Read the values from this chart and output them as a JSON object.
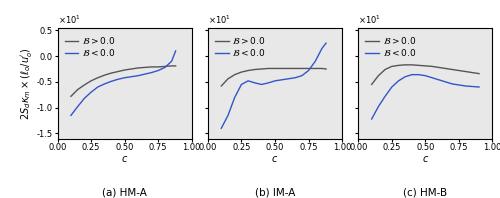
{
  "title_fontsize": 7.5,
  "label_fontsize": 7,
  "tick_fontsize": 6,
  "legend_fontsize": 6.5,
  "subplot_labels": [
    "(a) HM-A",
    "(b) IM-A",
    "(c) HM-B"
  ],
  "ylim": [
    -1.6,
    0.55
  ],
  "xlim": [
    0.0,
    1.0
  ],
  "yticks": [
    -1.5,
    -1.0,
    -0.5,
    0.0,
    0.5
  ],
  "xticks": [
    0.0,
    0.25,
    0.5,
    0.75,
    1.0
  ],
  "line_color_B_pos": "#555555",
  "line_color_B_neg": "#3355cc",
  "legend_B_pos": "$\\mathcal{B} > 0.0$",
  "legend_B_neg": "$\\mathcal{B} < 0.0$",
  "bg_color": "#e8e8e8",
  "HMA": {
    "B_pos_x": [
      0.1,
      0.15,
      0.2,
      0.25,
      0.3,
      0.35,
      0.4,
      0.45,
      0.5,
      0.55,
      0.6,
      0.65,
      0.7,
      0.75,
      0.8,
      0.85,
      0.88
    ],
    "B_pos_y": [
      -0.78,
      -0.65,
      -0.56,
      -0.48,
      -0.42,
      -0.37,
      -0.33,
      -0.3,
      -0.27,
      -0.25,
      -0.23,
      -0.22,
      -0.21,
      -0.21,
      -0.2,
      -0.19,
      -0.19
    ],
    "B_neg_x": [
      0.1,
      0.15,
      0.2,
      0.25,
      0.3,
      0.35,
      0.4,
      0.45,
      0.5,
      0.55,
      0.6,
      0.65,
      0.7,
      0.75,
      0.8,
      0.85,
      0.88
    ],
    "B_neg_y": [
      -1.15,
      -0.98,
      -0.82,
      -0.7,
      -0.6,
      -0.54,
      -0.49,
      -0.45,
      -0.42,
      -0.4,
      -0.38,
      -0.35,
      -0.32,
      -0.28,
      -0.22,
      -0.1,
      0.1
    ]
  },
  "IMA": {
    "B_pos_x": [
      0.1,
      0.15,
      0.2,
      0.25,
      0.3,
      0.35,
      0.4,
      0.45,
      0.5,
      0.55,
      0.6,
      0.65,
      0.7,
      0.75,
      0.8,
      0.85,
      0.88
    ],
    "B_pos_y": [
      -0.58,
      -0.44,
      -0.36,
      -0.31,
      -0.28,
      -0.26,
      -0.25,
      -0.24,
      -0.24,
      -0.24,
      -0.24,
      -0.24,
      -0.24,
      -0.24,
      -0.24,
      -0.24,
      -0.25
    ],
    "B_neg_x": [
      0.1,
      0.15,
      0.2,
      0.25,
      0.3,
      0.35,
      0.4,
      0.45,
      0.5,
      0.55,
      0.6,
      0.65,
      0.7,
      0.75,
      0.8,
      0.85,
      0.88
    ],
    "B_neg_y": [
      -1.4,
      -1.15,
      -0.8,
      -0.55,
      -0.48,
      -0.52,
      -0.55,
      -0.52,
      -0.48,
      -0.46,
      -0.44,
      -0.42,
      -0.38,
      -0.28,
      -0.1,
      0.15,
      0.25
    ]
  },
  "HMB": {
    "B_pos_x": [
      0.1,
      0.15,
      0.2,
      0.25,
      0.3,
      0.35,
      0.4,
      0.45,
      0.5,
      0.55,
      0.6,
      0.65,
      0.7,
      0.75,
      0.8,
      0.85,
      0.9
    ],
    "B_pos_y": [
      -0.55,
      -0.38,
      -0.26,
      -0.2,
      -0.18,
      -0.17,
      -0.17,
      -0.18,
      -0.19,
      -0.2,
      -0.22,
      -0.24,
      -0.26,
      -0.28,
      -0.3,
      -0.32,
      -0.34
    ],
    "B_neg_x": [
      0.1,
      0.15,
      0.2,
      0.25,
      0.3,
      0.35,
      0.4,
      0.45,
      0.5,
      0.55,
      0.6,
      0.65,
      0.7,
      0.75,
      0.8,
      0.85,
      0.9
    ],
    "B_neg_y": [
      -1.22,
      -0.98,
      -0.78,
      -0.6,
      -0.48,
      -0.4,
      -0.36,
      -0.36,
      -0.38,
      -0.42,
      -0.46,
      -0.5,
      -0.54,
      -0.56,
      -0.58,
      -0.59,
      -0.6
    ]
  }
}
